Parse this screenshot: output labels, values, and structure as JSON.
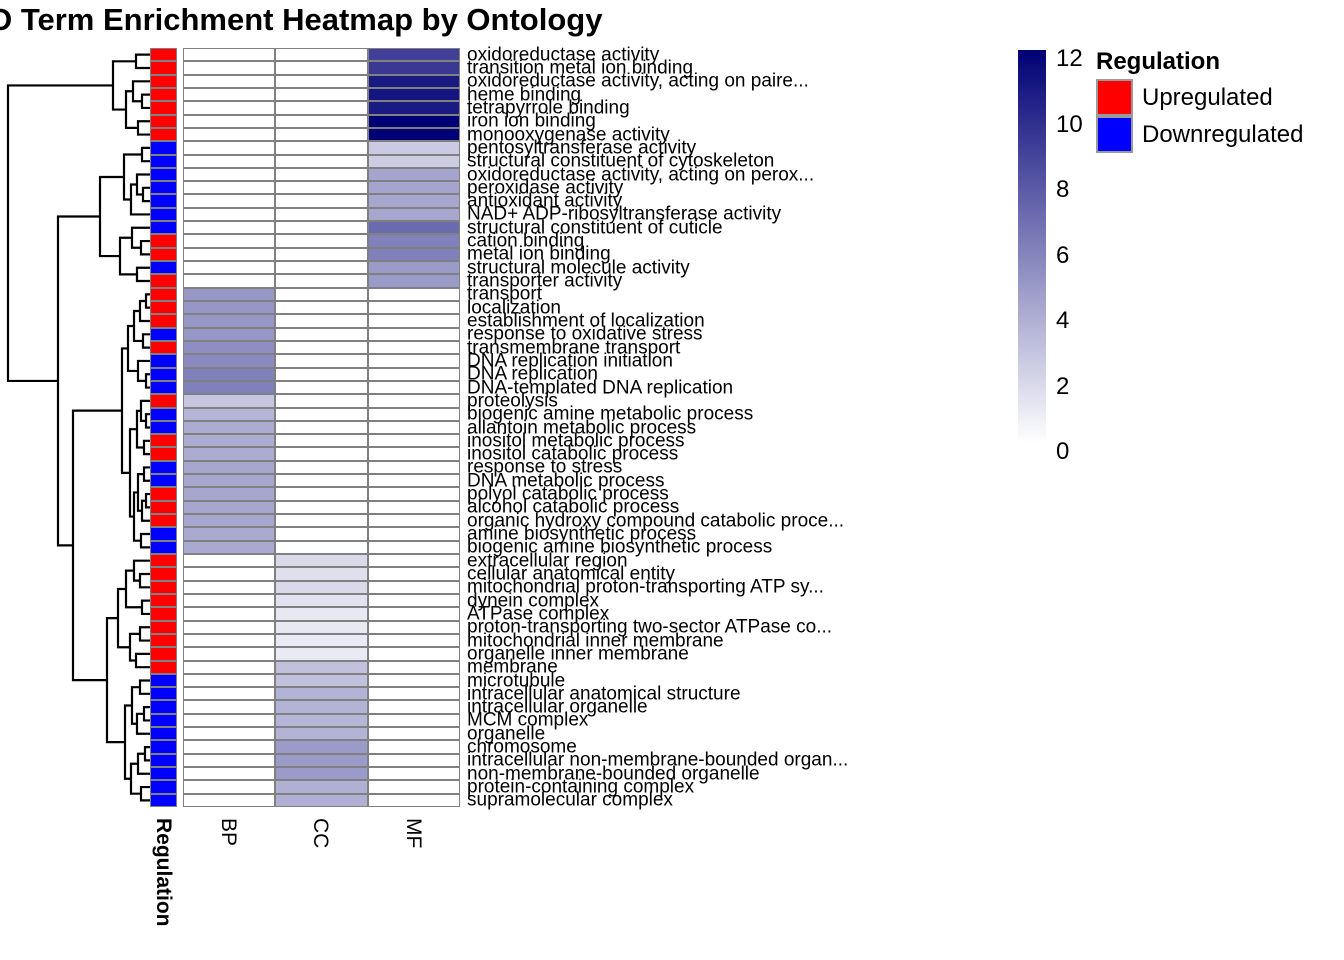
{
  "title": "GO Term Enrichment Heatmap by Ontology",
  "legend": {
    "colorbar": {
      "ticks": [
        12,
        10,
        8,
        6,
        4,
        2,
        0
      ],
      "min": 0,
      "max": 12,
      "min_color": "#FFFFFF",
      "max_color": "#000075"
    },
    "regulation": {
      "title": "Regulation",
      "items": [
        {
          "label": "Upregulated",
          "color": "#FF0000"
        },
        {
          "label": "Downregulated",
          "color": "#0000FF"
        }
      ]
    }
  },
  "chart_data": {
    "type": "heatmap",
    "title": "GO Term Enrichment Heatmap by Ontology",
    "columns": [
      "BP",
      "CC",
      "MF"
    ],
    "annotation_title": "Regulation",
    "colorscale": {
      "min": 0,
      "max": 12,
      "min_color": "#FFFFFF",
      "max_color": "#000075"
    },
    "grid_border_color": "#808080",
    "regulation_colors": {
      "Upregulated": "#FF0000",
      "Downregulated": "#0000FF"
    },
    "rows": [
      {
        "label": "oxidoreductase activity",
        "regulation": "Upregulated",
        "BP": null,
        "CC": null,
        "MF": 9.0
      },
      {
        "label": "transition metal ion binding",
        "regulation": "Upregulated",
        "BP": null,
        "CC": null,
        "MF": 9.3
      },
      {
        "label": "oxidoreductase activity, acting on paire...",
        "regulation": "Upregulated",
        "BP": null,
        "CC": null,
        "MF": 10.8
      },
      {
        "label": "heme binding",
        "regulation": "Upregulated",
        "BP": null,
        "CC": null,
        "MF": 11.0
      },
      {
        "label": "tetrapyrrole binding",
        "regulation": "Upregulated",
        "BP": null,
        "CC": null,
        "MF": 10.8
      },
      {
        "label": "iron ion binding",
        "regulation": "Upregulated",
        "BP": null,
        "CC": null,
        "MF": 12.0
      },
      {
        "label": "monooxygenase activity",
        "regulation": "Upregulated",
        "BP": null,
        "CC": null,
        "MF": 12.0
      },
      {
        "label": "pentosyltransferase activity",
        "regulation": "Downregulated",
        "BP": null,
        "CC": null,
        "MF": 2.5
      },
      {
        "label": "structural constituent of cytoskeleton",
        "regulation": "Downregulated",
        "BP": null,
        "CC": null,
        "MF": 2.4
      },
      {
        "label": "oxidoreductase activity, acting on perox...",
        "regulation": "Downregulated",
        "BP": null,
        "CC": null,
        "MF": 4.3
      },
      {
        "label": "peroxidase activity",
        "regulation": "Downregulated",
        "BP": null,
        "CC": null,
        "MF": 4.3
      },
      {
        "label": "antioxidant activity",
        "regulation": "Downregulated",
        "BP": null,
        "CC": null,
        "MF": 4.2
      },
      {
        "label": "NAD+ ADP-ribosyltransferase activity",
        "regulation": "Downregulated",
        "BP": null,
        "CC": null,
        "MF": 4.2
      },
      {
        "label": "structural constituent of cuticle",
        "regulation": "Downregulated",
        "BP": null,
        "CC": null,
        "MF": 7.0
      },
      {
        "label": "cation binding",
        "regulation": "Upregulated",
        "BP": null,
        "CC": null,
        "MF": 6.0
      },
      {
        "label": "metal ion binding",
        "regulation": "Upregulated",
        "BP": null,
        "CC": null,
        "MF": 6.0
      },
      {
        "label": "structural molecule activity",
        "regulation": "Downregulated",
        "BP": null,
        "CC": null,
        "MF": 4.7
      },
      {
        "label": "transporter activity",
        "regulation": "Upregulated",
        "BP": null,
        "CC": null,
        "MF": 4.7
      },
      {
        "label": "transport",
        "regulation": "Upregulated",
        "BP": 4.9,
        "CC": null,
        "MF": null
      },
      {
        "label": "localization",
        "regulation": "Upregulated",
        "BP": 4.9,
        "CC": null,
        "MF": null
      },
      {
        "label": "establishment of localization",
        "regulation": "Upregulated",
        "BP": 4.9,
        "CC": null,
        "MF": null
      },
      {
        "label": "response to oxidative stress",
        "regulation": "Downregulated",
        "BP": 4.9,
        "CC": null,
        "MF": null
      },
      {
        "label": "transmembrane transport",
        "regulation": "Upregulated",
        "BP": 5.3,
        "CC": null,
        "MF": null
      },
      {
        "label": "DNA replication initiation",
        "regulation": "Downregulated",
        "BP": 5.5,
        "CC": null,
        "MF": null
      },
      {
        "label": "DNA replication",
        "regulation": "Downregulated",
        "BP": 6.0,
        "CC": null,
        "MF": null
      },
      {
        "label": "DNA-templated DNA replication",
        "regulation": "Downregulated",
        "BP": 6.0,
        "CC": null,
        "MF": null
      },
      {
        "label": "proteolysis",
        "regulation": "Upregulated",
        "BP": 2.7,
        "CC": null,
        "MF": null
      },
      {
        "label": "biogenic amine metabolic process",
        "regulation": "Downregulated",
        "BP": 3.5,
        "CC": null,
        "MF": null
      },
      {
        "label": "allantoin metabolic process",
        "regulation": "Downregulated",
        "BP": 3.9,
        "CC": null,
        "MF": null
      },
      {
        "label": "inositol metabolic process",
        "regulation": "Upregulated",
        "BP": 3.9,
        "CC": null,
        "MF": null
      },
      {
        "label": "inositol catabolic process",
        "regulation": "Upregulated",
        "BP": 3.9,
        "CC": null,
        "MF": null
      },
      {
        "label": "response to stress",
        "regulation": "Downregulated",
        "BP": 4.2,
        "CC": null,
        "MF": null
      },
      {
        "label": "DNA metabolic process",
        "regulation": "Downregulated",
        "BP": 4.2,
        "CC": null,
        "MF": null
      },
      {
        "label": "polyol catabolic process",
        "regulation": "Upregulated",
        "BP": 4.2,
        "CC": null,
        "MF": null
      },
      {
        "label": "alcohol catabolic process",
        "regulation": "Upregulated",
        "BP": 4.2,
        "CC": null,
        "MF": null
      },
      {
        "label": "organic hydroxy compound catabolic proce...",
        "regulation": "Upregulated",
        "BP": 4.2,
        "CC": null,
        "MF": null
      },
      {
        "label": "amine biosynthetic process",
        "regulation": "Downregulated",
        "BP": 4.0,
        "CC": null,
        "MF": null
      },
      {
        "label": "biogenic amine biosynthetic process",
        "regulation": "Downregulated",
        "BP": 4.0,
        "CC": null,
        "MF": null
      },
      {
        "label": "extracellular region",
        "regulation": "Upregulated",
        "BP": null,
        "CC": 1.8,
        "MF": null
      },
      {
        "label": "cellular anatomical entity",
        "regulation": "Upregulated",
        "BP": null,
        "CC": 1.5,
        "MF": null
      },
      {
        "label": "mitochondrial proton-transporting ATP sy...",
        "regulation": "Upregulated",
        "BP": null,
        "CC": 1.8,
        "MF": null
      },
      {
        "label": "dynein complex",
        "regulation": "Upregulated",
        "BP": null,
        "CC": 1.4,
        "MF": null
      },
      {
        "label": "ATPase complex",
        "regulation": "Upregulated",
        "BP": null,
        "CC": 1.1,
        "MF": null
      },
      {
        "label": "proton-transporting two-sector ATPase co...",
        "regulation": "Upregulated",
        "BP": null,
        "CC": 1.1,
        "MF": null
      },
      {
        "label": "mitochondrial inner membrane",
        "regulation": "Upregulated",
        "BP": null,
        "CC": 1.0,
        "MF": null
      },
      {
        "label": "organelle inner membrane",
        "regulation": "Upregulated",
        "BP": null,
        "CC": 1.0,
        "MF": null
      },
      {
        "label": "membrane",
        "regulation": "Upregulated",
        "BP": null,
        "CC": 2.9,
        "MF": null
      },
      {
        "label": "microtubule",
        "regulation": "Downregulated",
        "BP": null,
        "CC": 2.9,
        "MF": null
      },
      {
        "label": "intracellular anatomical structure",
        "regulation": "Downregulated",
        "BP": null,
        "CC": 3.6,
        "MF": null
      },
      {
        "label": "intracellular organelle",
        "regulation": "Downregulated",
        "BP": null,
        "CC": 3.6,
        "MF": null
      },
      {
        "label": "MCM complex",
        "regulation": "Downregulated",
        "BP": null,
        "CC": 3.5,
        "MF": null
      },
      {
        "label": "organelle",
        "regulation": "Downregulated",
        "BP": null,
        "CC": 3.6,
        "MF": null
      },
      {
        "label": "chromosome",
        "regulation": "Downregulated",
        "BP": null,
        "CC": 4.7,
        "MF": null
      },
      {
        "label": "intracellular non-membrane-bounded organ...",
        "regulation": "Downregulated",
        "BP": null,
        "CC": 4.7,
        "MF": null
      },
      {
        "label": "non-membrane-bounded organelle",
        "regulation": "Downregulated",
        "BP": null,
        "CC": 4.7,
        "MF": null
      },
      {
        "label": "protein-containing complex",
        "regulation": "Downregulated",
        "BP": null,
        "CC": 3.7,
        "MF": null
      },
      {
        "label": "supramolecular complex",
        "regulation": "Downregulated",
        "BP": null,
        "CC": 3.7,
        "MF": null
      }
    ],
    "dendrogram": [
      8,
      [
        113,
        [
          136,
          1,
          2
        ],
        [
          126,
          [
            133,
            3,
            [
              142,
              4,
              5
            ]
          ],
          [
            138,
            6,
            7
          ]
        ]
      ],
      [
        58,
        [
          100,
          [
            124,
            [
              142,
              8,
              9
            ],
            [
              131,
              [
                137,
                10,
                [
                  143,
                  11,
                  12
                ]
              ],
              13
            ]
          ],
          [
            120,
            [
              132,
              14,
              [
                141,
                15,
                16
              ]
            ],
            [
              137,
              17,
              18
            ]
          ]
        ],
        [
          73,
          [
            122,
            [
              128,
              [
                134,
                [
                  140,
                  [
                    146,
                    19,
                    20
                  ],
                  21
                ],
                [
                  143,
                  22,
                  23
                ]
              ],
              [
                138,
                24,
                [
                  146,
                  25,
                  26
                ]
              ]
            ],
            [
              130,
              [
                137,
                [
                  141,
                  27,
                  [
                    146,
                    28,
                    29
                  ]
                ],
                [
                  144,
                  30,
                  31
                ]
              ],
              [
                134,
                [
                  138,
                  [
                    144,
                    32,
                    33
                  ],
                  [
                    142,
                    [
                      146,
                      34,
                      35
                    ],
                    36
                  ]
                ],
                [
                  141,
                  37,
                  38
                ]
              ]
            ]
          ],
          [
            107,
            [
              118,
              [
                126,
                [
                  134,
                  39,
                  [
                    140,
                    40,
                    41
                  ]
                ],
                [
                  142,
                  42,
                  43
                ]
              ],
              [
                130,
                [
                  140,
                  44,
                  45
                ],
                [
                  136,
                  46,
                  47
                ]
              ]
            ],
            [
              125,
              [
                132,
                [
                  140,
                  48,
                  49
                ],
                [
                  137,
                  [
                    144,
                    50,
                    51
                  ],
                  52
                ]
              ],
              [
                131,
                [
                  138,
                  [
                    145,
                    53,
                    54
                  ],
                  55
                ],
                [
                  141,
                  56,
                  57
                ]
              ]
            ]
          ]
        ]
      ]
    ]
  }
}
